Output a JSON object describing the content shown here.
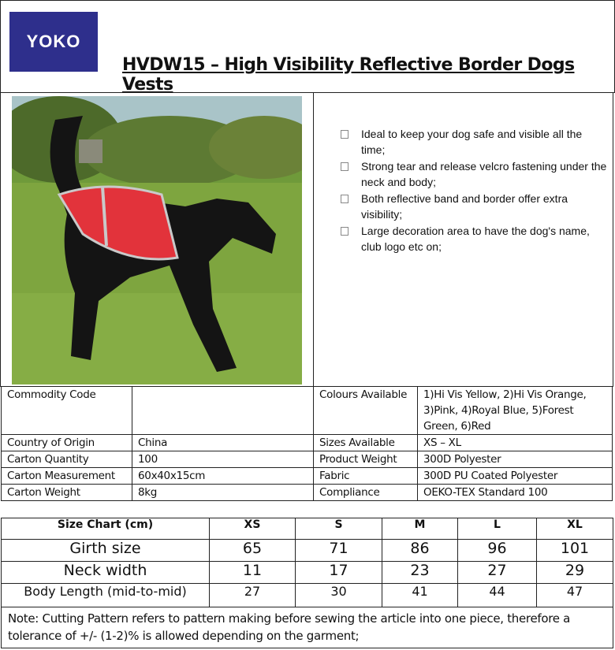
{
  "header": {
    "logo_text": "YOKO",
    "title": "HVDW15 – High Visibility Reflective Border Dogs Vests"
  },
  "product": {
    "photo": "black dog wearing red reflective vest on grass",
    "features": [
      "Ideal to keep your dog safe and visible all the time;",
      "Strong tear and release velcro fastening under the neck and body;",
      "Both reflective band and border offer extra visibility;",
      "Large decoration area to have the dog's name, club logo etc on;"
    ]
  },
  "spec": [
    {
      "l1": "Commodity Code",
      "v1": "",
      "l2": "Colours Available",
      "v2": "1)Hi Vis Yellow, 2)Hi Vis Orange, 3)Pink, 4)Royal Blue, 5)Forest Green, 6)Red"
    },
    {
      "l1": "Country of Origin",
      "v1": "China",
      "l2": "Sizes Available",
      "v2": "XS – XL"
    },
    {
      "l1": "Carton Quantity",
      "v1": "100",
      "l2": "Product Weight",
      "v2": "300D Polyester"
    },
    {
      "l1": "Carton Measurement",
      "v1": "60x40x15cm",
      "l2": "Fabric",
      "v2": "300D PU Coated Polyester"
    },
    {
      "l1": "Carton Weight",
      "v1": "8kg",
      "l2": "Compliance",
      "v2": "OEKO-TEX Standard 100"
    }
  ],
  "size_chart": {
    "header": [
      "Size Chart (cm)",
      "XS",
      "S",
      "M",
      "L",
      "XL"
    ],
    "rows": [
      [
        "Girth size",
        "65",
        "71",
        "86",
        "96",
        "101"
      ],
      [
        "Neck width",
        "11",
        "17",
        "23",
        "27",
        "29"
      ],
      [
        "Body Length (mid-to-mid)",
        "27",
        "30",
        "41",
        "44",
        "47"
      ]
    ],
    "note": "Note: Cutting Pattern refers to pattern making before sewing the article into one piece, therefore a tolerance of +/- (1-2)% is allowed depending on the garment;"
  }
}
